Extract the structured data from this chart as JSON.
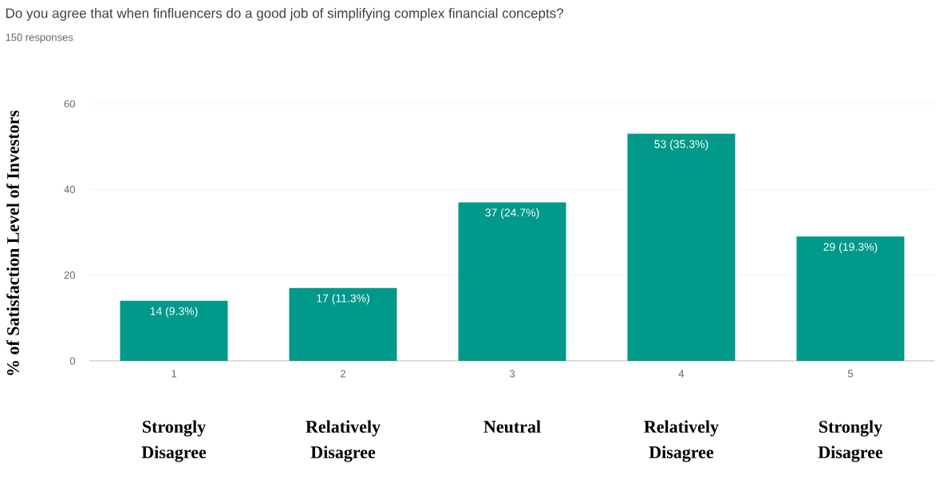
{
  "chart_data": {
    "type": "bar",
    "title": "Do you agree that when finfluencers do a good job of simplifying complex financial concepts?",
    "subtitle": "150 responses",
    "ylabel": "% of Satisfaction Level of Investors",
    "categories": [
      "1",
      "2",
      "3",
      "4",
      "5"
    ],
    "values": [
      14,
      17,
      37,
      53,
      29
    ],
    "value_labels": [
      "14 (9.3%)",
      "17 (11.3%)",
      "37 (24.7%)",
      "53 (35.3%)",
      "29 (19.3%)"
    ],
    "color": "#00998a",
    "annotations": [
      "Strongly Disagree",
      "Relatively Disagree",
      "Neutral",
      "Relatively Disagree",
      "Strongly Disagree"
    ],
    "ylim": [
      0,
      60
    ],
    "yticks": [
      0,
      20,
      40,
      60
    ],
    "grid": "y"
  }
}
